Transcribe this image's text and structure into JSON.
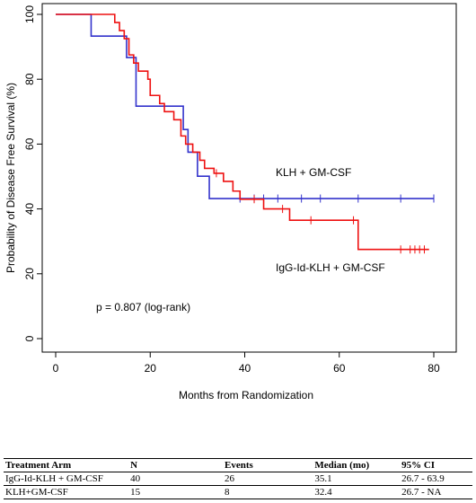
{
  "chart_data": {
    "type": "line",
    "step": true,
    "xlabel": "Months from Randomization",
    "ylabel": "Probability of Disease Free Survival (%)",
    "xlim": [
      0,
      82
    ],
    "ylim": [
      0,
      100
    ],
    "xticks": [
      0,
      20,
      40,
      60,
      80
    ],
    "yticks": [
      0,
      20,
      40,
      60,
      80,
      100
    ],
    "grid": false,
    "series": [
      {
        "name": "KLH + GM-CSF",
        "color": "#3333cc",
        "x": [
          0,
          7.5,
          15,
          17,
          26,
          27,
          28,
          30,
          32.5,
          80
        ],
        "y": [
          100,
          93.3,
          86.7,
          71.7,
          71.7,
          64.5,
          57.5,
          50.1,
          43.2,
          43.2
        ],
        "censor_x": [
          39,
          42,
          44,
          47,
          52,
          56,
          64,
          73,
          80
        ]
      },
      {
        "name": "IgG-Id-KLH + GM-CSF",
        "color": "#ee1111",
        "x": [
          0,
          12.5,
          13.5,
          14.5,
          15.5,
          16.5,
          17.5,
          19.5,
          20,
          22,
          23,
          25,
          26.5,
          27.5,
          29,
          30.5,
          31.5,
          33.5,
          35.5,
          37.5,
          39,
          44,
          49.5,
          64,
          79
        ],
        "y": [
          100,
          97.5,
          95,
          92.5,
          87.5,
          85,
          82.5,
          80,
          75,
          72.5,
          70,
          67.5,
          62.5,
          60,
          57.5,
          55,
          52.5,
          51,
          48.5,
          45.5,
          43,
          40,
          36.5,
          27.5,
          27.5
        ],
        "censor_x": [
          34,
          42,
          48,
          54,
          63,
          73,
          75,
          76,
          77,
          78
        ]
      }
    ],
    "annotations": {
      "klh_label": "KLH + GM-CSF",
      "igg_label": "IgG-Id-KLH + GM-CSF",
      "pvalue": "p = 0.807 (log-rank)"
    }
  },
  "table": {
    "headers": [
      "Treatment Arm",
      "N",
      "Events",
      "Median (mo)",
      "95% CI"
    ],
    "rows": [
      [
        "IgG-Id-KLH + GM-CSF",
        "40",
        "26",
        "35.1",
        "26.7 - 63.9"
      ],
      [
        "KLH+GM-CSF",
        "15",
        "8",
        "32.4",
        "26.7 - NA"
      ]
    ]
  }
}
